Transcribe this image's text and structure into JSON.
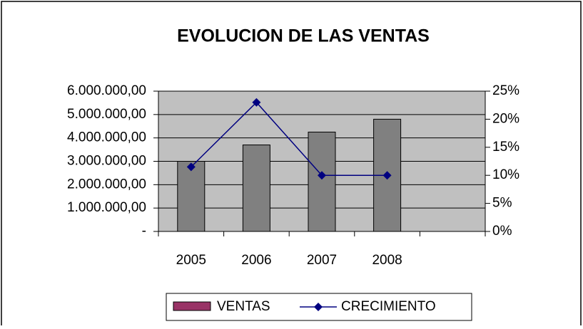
{
  "chart_data": {
    "type": "bar_line",
    "title": "EVOLUCION DE LAS VENTAS",
    "categories": [
      "2005",
      "2006",
      "2007",
      "2008",
      null
    ],
    "series": [
      {
        "name": "VENTAS",
        "color": "#808080",
        "legend_color": "#993366",
        "values": [
          3000000,
          3700000,
          4250000,
          4800000,
          null
        ]
      },
      {
        "name": "CRECIMIENTO",
        "color": "#000080",
        "axis": "y2",
        "values": [
          11.5,
          23,
          10,
          10,
          null
        ]
      }
    ],
    "ylim": [
      0,
      6000000
    ],
    "yticks": [
      {
        "value": 0,
        "label": "-"
      },
      {
        "value": 1000000,
        "label": "1.000.000,00"
      },
      {
        "value": 2000000,
        "label": "2.000.000,00"
      },
      {
        "value": 3000000,
        "label": "3.000.000,00"
      },
      {
        "value": 4000000,
        "label": "4.000.000,00"
      },
      {
        "value": 5000000,
        "label": "5.000.000,00"
      },
      {
        "value": 6000000,
        "label": "6.000.000,00"
      }
    ],
    "y2lim": [
      0,
      25
    ],
    "y2ticks": [
      {
        "value": 0,
        "label": "0%"
      },
      {
        "value": 5,
        "label": "5%"
      },
      {
        "value": 10,
        "label": "10%"
      },
      {
        "value": 15,
        "label": "15%"
      },
      {
        "value": 20,
        "label": "20%"
      },
      {
        "value": 25,
        "label": "25%"
      }
    ],
    "grid": true,
    "legend": "bottom",
    "plot_background": "#c0c0c0"
  }
}
